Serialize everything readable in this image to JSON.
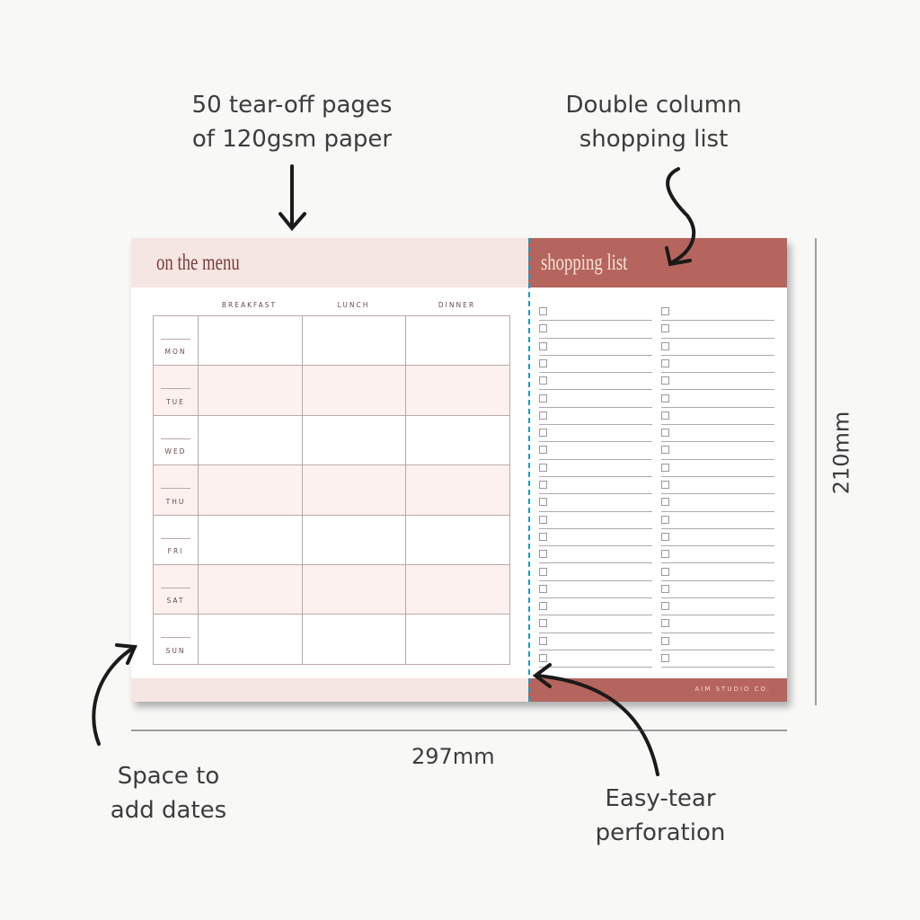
{
  "callouts": {
    "pages": "50 tear-off pages\nof 120gsm paper",
    "double_column": "Double column\nshopping list",
    "dates": "Space to\nadd dates",
    "perforation": "Easy-tear\nperforation"
  },
  "dimensions": {
    "width": "297mm",
    "height": "210mm"
  },
  "menu": {
    "title": "on the menu",
    "columns": [
      "BREAKFAST",
      "LUNCH",
      "DINNER"
    ],
    "days": [
      "MON",
      "TUE",
      "WED",
      "THU",
      "FRI",
      "SAT",
      "SUN"
    ]
  },
  "shopping": {
    "title": "shopping list",
    "rows_per_column": 21,
    "columns": 2
  },
  "brand": "AIM STUDIO CO.",
  "colors": {
    "pink": "#f6e6e3",
    "terracotta": "#b5655d",
    "perforation": "#1c9cc8"
  }
}
